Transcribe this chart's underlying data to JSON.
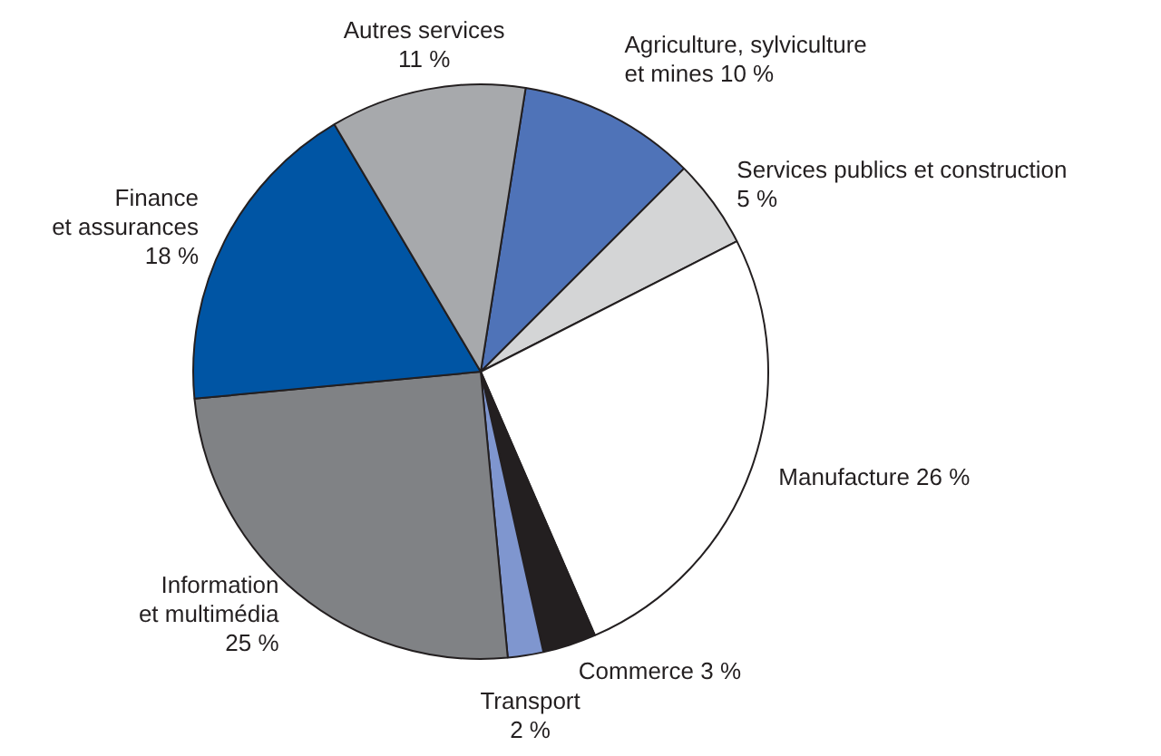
{
  "chart_data": {
    "type": "pie",
    "categories": [
      "Agriculture, sylviculture\net mines",
      "Services publics et construction",
      "Manufacture",
      "Commerce",
      "Transport",
      "Information\net multimédia",
      "Finance\net assurances",
      "Autres services"
    ],
    "values": [
      10,
      5,
      26,
      3,
      2,
      25,
      18,
      11
    ],
    "value_labels": [
      "10 %",
      "5 %",
      "26 %",
      "3 %",
      "2 %",
      "25 %",
      "18 %",
      "11 %"
    ],
    "colors": [
      "#4f73b8",
      "#d4d5d6",
      "#ffffff",
      "#231f20",
      "#7f96cf",
      "#808285",
      "#0055a4",
      "#a7a9ac"
    ],
    "legend": false
  }
}
